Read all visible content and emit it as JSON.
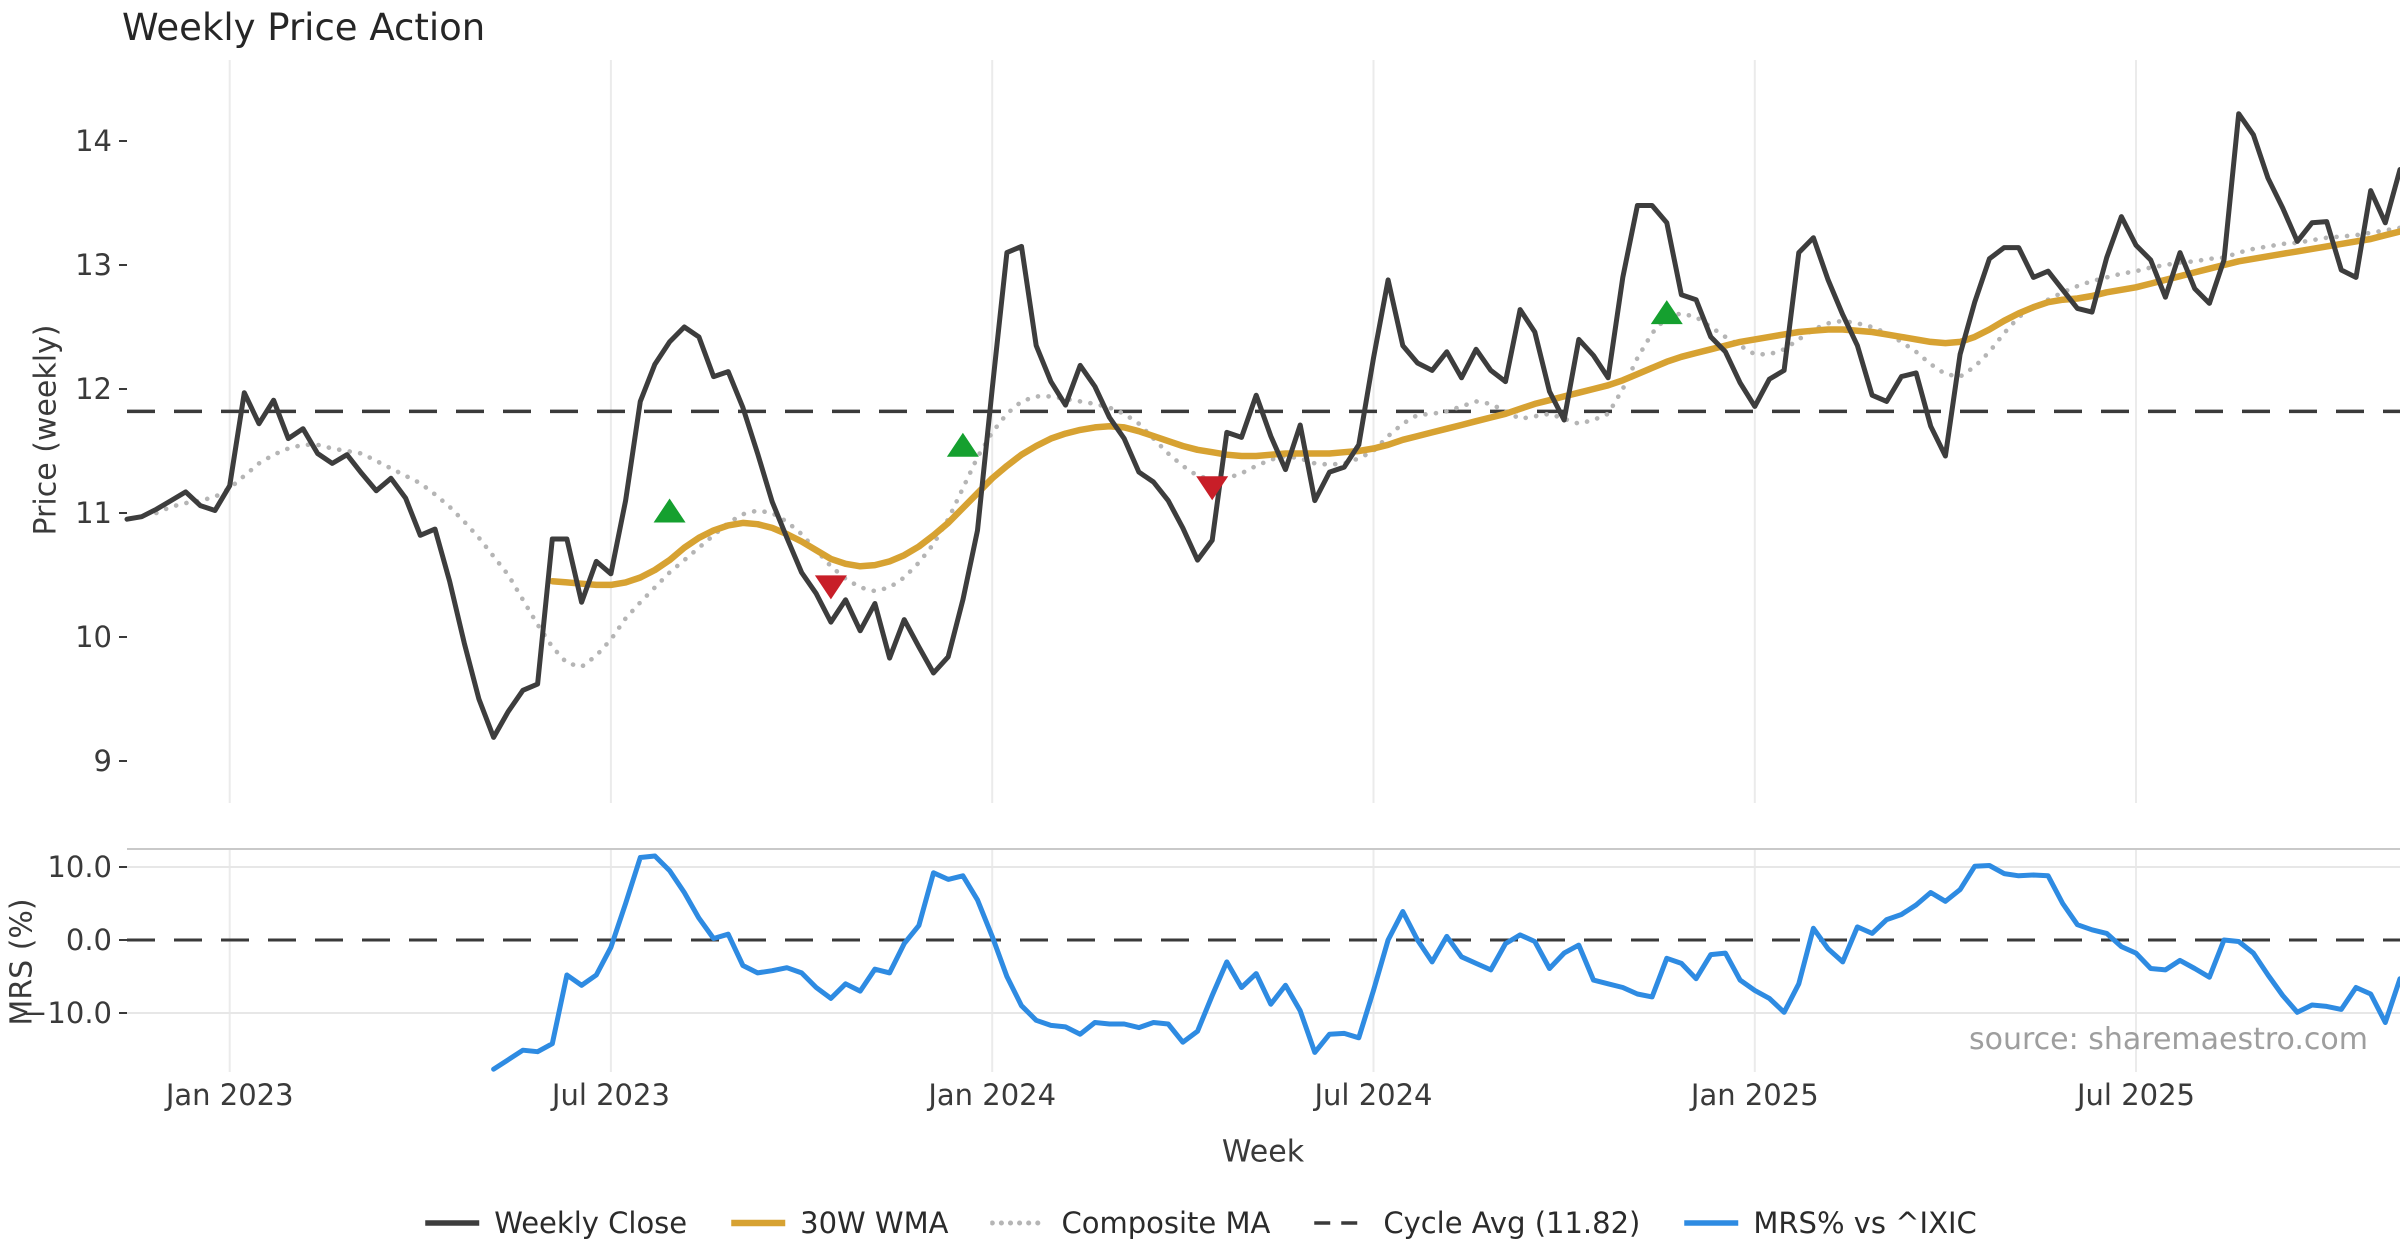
{
  "title": "Weekly Price Action",
  "xlabel": "Week",
  "source": "source: sharemaestro.com",
  "price_panel": {
    "ylabel": "Price (weekly)",
    "yticks": [
      9,
      10,
      11,
      12,
      13,
      14
    ]
  },
  "mrs_panel": {
    "ylabel": "MRS (%)",
    "yticks": [
      {
        "v": 10,
        "label": "10.0"
      },
      {
        "v": 0,
        "label": "0.0"
      },
      {
        "v": -10,
        "label": "−10.0"
      }
    ]
  },
  "xticks": [
    {
      "week": 7,
      "label": "Jan 2023"
    },
    {
      "week": 33,
      "label": "Jul 2023"
    },
    {
      "week": 59,
      "label": "Jan 2024"
    },
    {
      "week": 85,
      "label": "Jul 2024"
    },
    {
      "week": 111,
      "label": "Jan 2025"
    },
    {
      "week": 137,
      "label": "Jul 2025"
    }
  ],
  "colors": {
    "close": "#3d3d3d",
    "wma": "#d7a232",
    "composite": "#b5b5b5",
    "cycle_avg": "#3a3a3a",
    "mrs": "#2e8be2",
    "marker_up": "#15a02f",
    "marker_down": "#c81e28",
    "grid": "#ebebeb",
    "mrs_grid": "#e7e7e7",
    "mrs_spine": "#c9c9c9",
    "tick_text": "#3a3a3a"
  },
  "legend": [
    {
      "label": "Weekly Close",
      "style": "solid",
      "color": "#3d3d3d",
      "width": 5.5
    },
    {
      "label": "30W WMA",
      "style": "solid",
      "color": "#d7a232",
      "width": 6.5
    },
    {
      "label": "Composite MA",
      "style": "dotted",
      "color": "#b5b5b5",
      "width": 5
    },
    {
      "label": "Cycle Avg (11.82)",
      "style": "dashed",
      "color": "#3a3a3a",
      "width": 3.5
    },
    {
      "label": "MRS% vs ^IXIC",
      "style": "solid",
      "color": "#2e8be2",
      "width": 5.5
    }
  ],
  "chart_data": [
    {
      "type": "line",
      "title": "Weekly Price Action",
      "xlabel": "Week",
      "ylabel": "Price (weekly)",
      "x_unit": "week_index",
      "x_range": [
        0,
        155
      ],
      "ylim": [
        8.66,
        14.65
      ],
      "grid": "vertical-only",
      "legend_position": "bottom-center",
      "cycle_avg": 11.82,
      "series": [
        {
          "name": "Weekly Close",
          "style": "solid",
          "start": 0,
          "values": [
            10.95,
            10.97,
            11.03,
            11.1,
            11.17,
            11.06,
            11.02,
            11.22,
            11.97,
            11.72,
            11.91,
            11.6,
            11.68,
            11.48,
            11.4,
            11.47,
            11.32,
            11.18,
            11.28,
            11.12,
            10.82,
            10.87,
            10.45,
            9.95,
            9.5,
            9.19,
            9.4,
            9.57,
            9.62,
            10.79,
            10.79,
            10.28,
            10.61,
            10.51,
            11.1,
            11.9,
            12.2,
            12.38,
            12.5,
            12.42,
            12.1,
            12.14,
            11.85,
            11.48,
            11.09,
            10.8,
            10.52,
            10.35,
            10.12,
            10.3,
            10.05,
            10.27,
            9.83,
            10.14,
            9.92,
            9.71,
            9.84,
            10.3,
            10.86,
            12.0,
            13.1,
            13.15,
            12.35,
            12.06,
            11.87,
            12.19,
            12.02,
            11.77,
            11.6,
            11.33,
            11.25,
            11.1,
            10.88,
            10.62,
            10.78,
            11.65,
            11.61,
            11.95,
            11.62,
            11.35,
            11.71,
            11.1,
            11.33,
            11.37,
            11.55,
            12.25,
            12.88,
            12.35,
            12.21,
            12.15,
            12.3,
            12.09,
            12.32,
            12.15,
            12.06,
            12.64,
            12.46,
            11.98,
            11.75,
            12.4,
            12.27,
            12.09,
            12.9,
            13.48,
            13.48,
            13.34,
            12.76,
            12.72,
            12.42,
            12.3,
            12.05,
            11.86,
            12.08,
            12.15,
            13.1,
            13.22,
            12.88,
            12.6,
            12.35,
            11.95,
            11.9,
            12.1,
            12.13,
            11.7,
            11.46,
            12.28,
            12.7,
            13.05,
            13.14,
            13.14,
            12.9,
            12.95,
            12.8,
            12.65,
            12.62,
            13.06,
            13.39,
            13.16,
            13.04,
            12.74,
            13.1,
            12.81,
            12.69,
            13.04,
            14.22,
            14.05,
            13.7,
            13.46,
            13.19,
            13.34,
            13.35,
            12.96,
            12.9,
            13.6,
            13.34,
            13.77
          ]
        },
        {
          "name": "30W WMA",
          "style": "solid",
          "start": 29,
          "values": [
            10.45,
            10.44,
            10.43,
            10.42,
            10.42,
            10.44,
            10.48,
            10.54,
            10.62,
            10.72,
            10.8,
            10.86,
            10.9,
            10.92,
            10.91,
            10.88,
            10.83,
            10.77,
            10.7,
            10.63,
            10.59,
            10.57,
            10.58,
            10.61,
            10.66,
            10.73,
            10.82,
            10.92,
            11.04,
            11.16,
            11.28,
            11.38,
            11.47,
            11.54,
            11.6,
            11.64,
            11.67,
            11.69,
            11.7,
            11.69,
            11.66,
            11.62,
            11.58,
            11.54,
            11.51,
            11.49,
            11.47,
            11.46,
            11.46,
            11.47,
            11.48,
            11.48,
            11.48,
            11.48,
            11.49,
            11.5,
            11.52,
            11.55,
            11.59,
            11.62,
            11.65,
            11.68,
            11.71,
            11.74,
            11.77,
            11.8,
            11.84,
            11.88,
            11.91,
            11.94,
            11.97,
            12.0,
            12.03,
            12.07,
            12.12,
            12.17,
            12.22,
            12.26,
            12.29,
            12.32,
            12.35,
            12.38,
            12.4,
            12.42,
            12.44,
            12.46,
            12.47,
            12.48,
            12.48,
            12.47,
            12.46,
            12.44,
            12.42,
            12.4,
            12.38,
            12.37,
            12.38,
            12.42,
            12.48,
            12.55,
            12.61,
            12.66,
            12.7,
            12.72,
            12.73,
            12.75,
            12.78,
            12.8,
            12.82,
            12.85,
            12.88,
            12.91,
            12.94,
            12.97,
            13.0,
            13.03,
            13.05,
            13.07,
            13.09,
            13.11,
            13.13,
            13.15,
            13.17,
            13.19,
            13.21,
            13.24,
            13.27
          ]
        },
        {
          "name": "Composite MA",
          "style": "dotted",
          "start": 2,
          "values": [
            11.0,
            11.05,
            11.08,
            11.1,
            11.13,
            11.2,
            11.3,
            11.4,
            11.47,
            11.52,
            11.55,
            11.55,
            11.52,
            11.5,
            11.48,
            11.42,
            11.36,
            11.3,
            11.24,
            11.15,
            11.05,
            10.93,
            10.8,
            10.65,
            10.5,
            10.3,
            10.1,
            9.92,
            9.79,
            9.76,
            9.85,
            9.98,
            10.15,
            10.28,
            10.4,
            10.52,
            10.62,
            10.72,
            10.82,
            10.92,
            10.99,
            11.02,
            11.0,
            10.93,
            10.83,
            10.7,
            10.57,
            10.47,
            10.4,
            10.37,
            10.4,
            10.48,
            10.6,
            10.75,
            10.95,
            11.2,
            11.45,
            11.65,
            11.8,
            11.9,
            11.94,
            11.94,
            11.92,
            11.9,
            11.88,
            11.85,
            11.8,
            11.72,
            11.6,
            11.48,
            11.38,
            11.3,
            11.27,
            11.28,
            11.32,
            11.38,
            11.43,
            11.46,
            11.44,
            11.4,
            11.39,
            11.4,
            11.44,
            11.5,
            11.62,
            11.72,
            11.79,
            11.8,
            11.82,
            11.86,
            11.9,
            11.88,
            11.82,
            11.76,
            11.78,
            11.8,
            11.76,
            11.72,
            11.75,
            11.8,
            12.0,
            12.25,
            12.45,
            12.58,
            12.61,
            12.58,
            12.5,
            12.42,
            12.35,
            12.28,
            12.28,
            12.32,
            12.4,
            12.48,
            12.53,
            12.55,
            12.53,
            12.5,
            12.45,
            12.38,
            12.3,
            12.2,
            12.12,
            12.1,
            12.18,
            12.3,
            12.45,
            12.58,
            12.66,
            12.72,
            12.78,
            12.83,
            12.87,
            12.9,
            12.93,
            12.95,
            12.98,
            13.0,
            13.02,
            13.03,
            13.05,
            13.06,
            13.1,
            13.13,
            13.15,
            13.17,
            13.18,
            13.2,
            13.22,
            13.23,
            13.24,
            13.26,
            13.28,
            13.3
          ]
        },
        {
          "name": "Cycle Avg (11.82)",
          "style": "dashed",
          "value": 11.82
        }
      ],
      "markers": [
        {
          "week": 37,
          "value": 11.02,
          "dir": "up"
        },
        {
          "week": 48,
          "value": 10.4,
          "dir": "down"
        },
        {
          "week": 57,
          "value": 11.55,
          "dir": "up"
        },
        {
          "week": 74,
          "value": 11.2,
          "dir": "down"
        },
        {
          "week": 105,
          "value": 12.62,
          "dir": "up"
        }
      ]
    },
    {
      "type": "line",
      "ylabel": "MRS (%)",
      "ylim": [
        -18.5,
        12.5
      ],
      "zero_line": 0,
      "series": [
        {
          "name": "MRS% vs ^IXIC",
          "style": "solid",
          "start": 25,
          "values": [
            -17.7,
            -16.4,
            -15.1,
            -15.3,
            -14.2,
            -4.8,
            -6.2,
            -4.8,
            -1.0,
            5.0,
            11.3,
            11.5,
            9.5,
            6.5,
            3.0,
            0.2,
            0.8,
            -3.5,
            -4.5,
            -4.2,
            -3.8,
            -4.5,
            -6.5,
            -8.0,
            -6.0,
            -7.0,
            -4.0,
            -4.5,
            -0.5,
            2.0,
            9.2,
            8.3,
            8.8,
            5.5,
            0.5,
            -5.0,
            -9.0,
            -11.0,
            -11.7,
            -11.9,
            -12.9,
            -11.3,
            -11.5,
            -11.5,
            -12.0,
            -11.3,
            -11.5,
            -14.0,
            -12.5,
            -7.6,
            -3.0,
            -6.5,
            -4.6,
            -8.8,
            -6.2,
            -9.7,
            -15.4,
            -12.9,
            -12.8,
            -13.4,
            -6.9,
            0.0,
            3.9,
            0.0,
            -3.0,
            0.5,
            -2.3,
            -3.2,
            -4.1,
            -0.5,
            0.7,
            -0.2,
            -3.9,
            -1.8,
            -0.7,
            -5.5,
            -6.0,
            -6.5,
            -7.4,
            -7.8,
            -2.5,
            -3.2,
            -5.3,
            -2.0,
            -1.8,
            -5.5,
            -6.9,
            -8.0,
            -9.9,
            -6.0,
            1.6,
            -1.2,
            -3.0,
            1.8,
            0.9,
            2.8,
            3.5,
            4.8,
            6.5,
            5.3,
            6.9,
            10.1,
            10.2,
            9.1,
            8.8,
            8.9,
            8.8,
            5.0,
            2.1,
            1.4,
            0.9,
            -0.9,
            -1.8,
            -3.9,
            -4.1,
            -2.8,
            -3.9,
            -5.1,
            0.0,
            -0.2,
            -1.8,
            -4.8,
            -7.6,
            -9.9,
            -8.9,
            -9.1,
            -9.5,
            -6.5,
            -7.4,
            -11.3,
            -5.3
          ]
        },
        {
          "name": "Zero line",
          "style": "dashed",
          "value": 0
        }
      ]
    }
  ]
}
